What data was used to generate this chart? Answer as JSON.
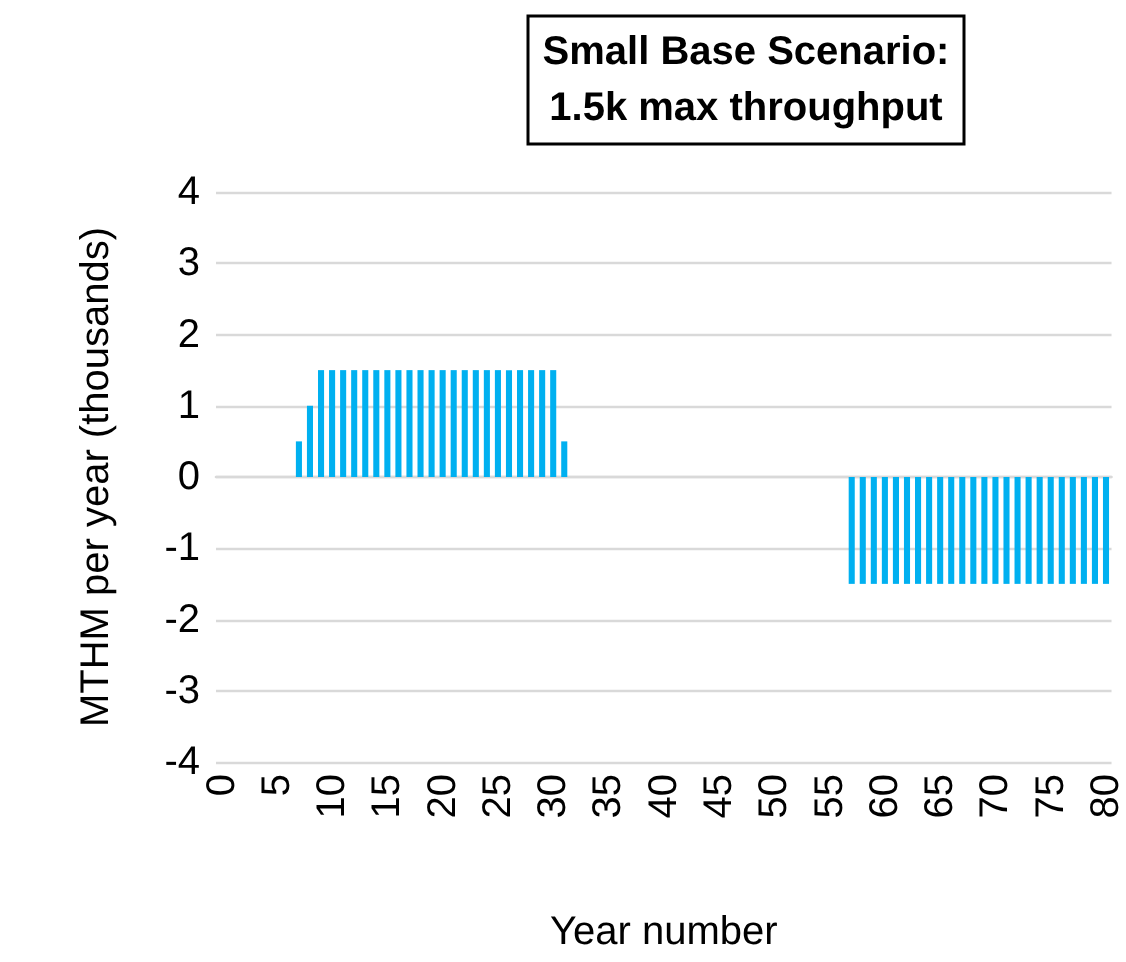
{
  "chart_data": {
    "type": "bar",
    "title": "Small Base Scenario:\n1.5k max throughput",
    "xlabel": "Year number",
    "ylabel": "MTHM per year (thousands)",
    "categories": [
      "0",
      null,
      null,
      null,
      null,
      "5",
      null,
      null,
      null,
      null,
      "10",
      null,
      null,
      null,
      null,
      "15",
      null,
      null,
      null,
      null,
      "20",
      null,
      null,
      null,
      null,
      "25",
      null,
      null,
      null,
      null,
      "30",
      null,
      null,
      null,
      null,
      "35",
      null,
      null,
      null,
      null,
      "40",
      null,
      null,
      null,
      null,
      "45",
      null,
      null,
      null,
      null,
      "50",
      null,
      null,
      null,
      null,
      "55",
      null,
      null,
      null,
      null,
      "60",
      null,
      null,
      null,
      null,
      "65",
      null,
      null,
      null,
      null,
      "70",
      null,
      null,
      null,
      null,
      "75",
      null,
      null,
      null,
      null,
      "80"
    ],
    "values": [
      0,
      0,
      0,
      0,
      0,
      0,
      0,
      0.5,
      1,
      1.5,
      1.5,
      1.5,
      1.5,
      1.5,
      1.5,
      1.5,
      1.5,
      1.5,
      1.5,
      1.5,
      1.5,
      1.5,
      1.5,
      1.5,
      1.5,
      1.5,
      1.5,
      1.5,
      1.5,
      1.5,
      1.5,
      0.5,
      0,
      0,
      0,
      0,
      0,
      0,
      0,
      0,
      0,
      0,
      0,
      0,
      0,
      0,
      0,
      0,
      0,
      0,
      0,
      0,
      0,
      0,
      0,
      0,
      0,
      -1.5,
      -1.5,
      -1.5,
      -1.5,
      -1.5,
      -1.5,
      -1.5,
      -1.5,
      -1.5,
      -1.5,
      -1.5,
      -1.5,
      -1.5,
      -1.5,
      -1.5,
      -1.5,
      -1.5,
      -1.5,
      -1.5,
      -1.5,
      -1.5,
      -1.5,
      -1.5,
      -1.5
    ],
    "color": "#00b0f0",
    "ylim": [
      -4,
      4
    ],
    "yticks": [
      -4,
      -3,
      -2,
      -1,
      0,
      1,
      2,
      3,
      4
    ],
    "grid": "y"
  }
}
